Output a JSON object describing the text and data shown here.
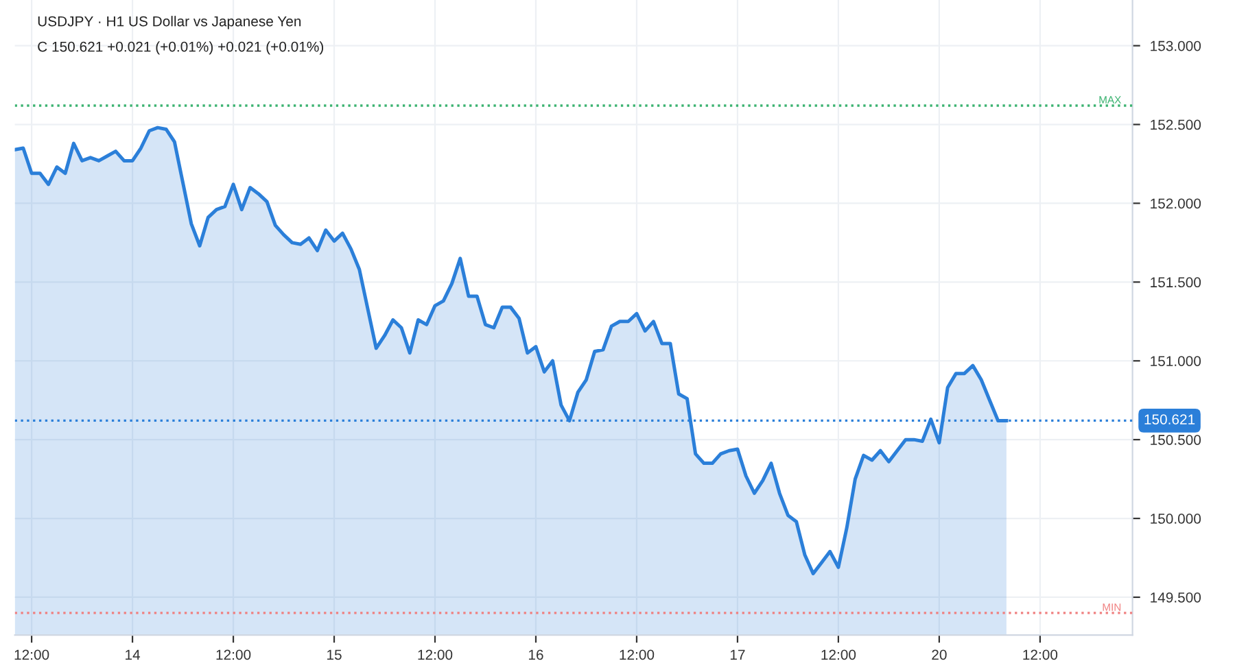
{
  "chart_data": {
    "type": "area",
    "title": "USDJPY · H1 US Dollar vs Japanese Yen",
    "subtitle": "C 150.621 +0.021 (+0.01%) +0.021 (+0.01%)",
    "categories": [
      null,
      null,
      "12:00",
      null,
      null,
      null,
      null,
      null,
      null,
      null,
      null,
      null,
      null,
      null,
      "14",
      null,
      null,
      null,
      null,
      null,
      null,
      null,
      null,
      null,
      null,
      null,
      "12:00",
      null,
      null,
      null,
      null,
      null,
      null,
      null,
      null,
      null,
      null,
      null,
      "15",
      null,
      null,
      null,
      null,
      null,
      null,
      null,
      null,
      null,
      null,
      null,
      "12:00",
      null,
      null,
      null,
      null,
      null,
      null,
      null,
      null,
      null,
      null,
      null,
      "16",
      null,
      null,
      null,
      null,
      null,
      null,
      null,
      null,
      null,
      null,
      null,
      "12:00",
      null,
      null,
      null,
      null,
      null,
      null,
      null,
      null,
      null,
      null,
      null,
      "17",
      null,
      null,
      null,
      null,
      null,
      null,
      null,
      null,
      null,
      null,
      null,
      "12:00",
      null,
      null,
      null,
      null,
      null,
      null,
      null,
      null,
      null,
      null,
      null,
      "20",
      null,
      null,
      null,
      null,
      null,
      null,
      null,
      null,
      null,
      null,
      null,
      "12:00",
      null,
      null,
      null,
      null,
      null,
      null,
      null,
      null,
      null,
      null,
      null
    ],
    "series": [
      {
        "color": "#2b7fd9",
        "values": [
          152.34,
          152.35,
          152.19,
          152.19,
          152.12,
          152.23,
          152.19,
          152.38,
          152.27,
          152.29,
          152.27,
          152.3,
          152.33,
          152.27,
          152.27,
          152.35,
          152.46,
          152.48,
          152.47,
          152.39,
          152.13,
          151.87,
          151.73,
          151.91,
          151.96,
          151.98,
          152.12,
          151.96,
          152.1,
          152.06,
          152.01,
          151.86,
          151.8,
          151.75,
          151.74,
          151.78,
          151.7,
          151.83,
          151.76,
          151.81,
          151.71,
          151.58,
          151.33,
          151.08,
          151.16,
          151.26,
          151.21,
          151.05,
          151.26,
          151.23,
          151.35,
          151.38,
          151.49,
          151.65,
          151.41,
          151.41,
          151.23,
          151.21,
          151.34,
          151.34,
          151.27,
          151.05,
          151.09,
          150.93,
          151.0,
          150.72,
          150.62,
          150.8,
          150.88,
          151.06,
          151.07,
          151.22,
          151.25,
          151.25,
          151.3,
          151.19,
          151.25,
          151.11,
          151.11,
          150.79,
          150.76,
          150.41,
          150.35,
          150.35,
          150.41,
          150.43,
          150.44,
          150.27,
          150.16,
          150.24,
          150.35,
          150.16,
          150.02,
          149.98,
          149.77,
          149.65,
          149.72,
          149.79,
          149.69,
          149.94,
          150.25,
          150.4,
          150.37,
          150.43,
          150.36,
          150.43,
          150.5,
          150.5,
          150.49,
          150.63,
          150.48,
          150.83,
          150.92,
          150.92,
          150.97,
          150.88,
          150.75,
          150.62,
          150.62,
          null,
          null,
          null,
          null,
          null,
          null,
          null,
          null,
          null,
          null,
          null,
          null,
          null,
          null,
          null
        ]
      }
    ],
    "ylim": [
      149.26,
      153.29
    ],
    "yticks": [
      {
        "value": 149.5,
        "label": "149.500"
      },
      {
        "value": 150.0,
        "label": "150.000"
      },
      {
        "value": 150.5,
        "label": "150.500"
      },
      {
        "value": 151.0,
        "label": "151.000"
      },
      {
        "value": 151.5,
        "label": "151.500"
      },
      {
        "value": 152.0,
        "label": "152.000"
      },
      {
        "value": 152.5,
        "label": "152.500"
      },
      {
        "value": 153.0,
        "label": "153.000"
      }
    ],
    "grid": true,
    "line_style": "solid",
    "ref_lines": [
      {
        "axis": "y",
        "value": 152.62,
        "label": "MAX",
        "color": "#3cb371",
        "line_style": "dotted"
      },
      {
        "axis": "y",
        "value": 149.4,
        "label": "MIN",
        "color": "#f08080",
        "line_style": "dotted"
      },
      {
        "axis": "y",
        "value": 150.621,
        "label": "150.621",
        "color": "#2b7fd9",
        "line_style": "dotted"
      }
    ]
  }
}
